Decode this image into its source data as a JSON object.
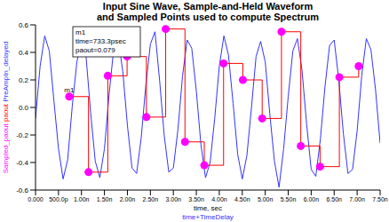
{
  "chart_data": {
    "type": "line",
    "title": [
      "Input Sine Wave, Sample-and-Held Waveform",
      "and Sampled Points used to compute Spectrum"
    ],
    "xlabel": "time, sec",
    "x_expression": "time+TimeDelay",
    "xlim": [
      0,
      7.5
    ],
    "xticks": [
      {
        "value": 0,
        "label": "0.000"
      },
      {
        "value": 0.5,
        "label": "500.0p"
      },
      {
        "value": 1,
        "label": "1.00n"
      },
      {
        "value": 1.5,
        "label": "1.50n"
      },
      {
        "value": 2,
        "label": "2.00n"
      },
      {
        "value": 2.5,
        "label": "2.50n"
      },
      {
        "value": 3,
        "label": "3.00n"
      },
      {
        "value": 3.5,
        "label": "3.50n"
      },
      {
        "value": 4,
        "label": "4.00n"
      },
      {
        "value": 4.5,
        "label": "4.50n"
      },
      {
        "value": 5,
        "label": "5.00n"
      },
      {
        "value": 5.5,
        "label": "5.50n"
      },
      {
        "value": 6,
        "label": "6.00n"
      },
      {
        "value": 6.5,
        "label": "6.50n"
      },
      {
        "value": 7,
        "label": "7.00n"
      },
      {
        "value": 7.5,
        "label": "7.50n"
      }
    ],
    "ylim": [
      -0.6,
      0.6
    ],
    "yticks": [
      -0.6,
      -0.4,
      -0.2,
      {
        "value": 0,
        "label": "0.0"
      },
      0.2,
      0.4,
      0.6
    ],
    "grid": false,
    "series": [
      {
        "name": "PreAmpIn_delayed",
        "type": "line",
        "color": "#3333ff",
        "x": [
          0,
          0.1,
          0.2,
          0.3,
          0.4,
          0.5,
          0.6,
          0.7,
          0.8,
          0.9,
          1.0,
          1.1,
          1.2,
          1.3,
          1.4,
          1.5,
          1.6,
          1.7,
          1.8,
          1.9,
          2.0,
          2.1,
          2.2,
          2.3,
          2.4,
          2.5,
          2.6,
          2.7,
          2.8,
          2.9,
          3.0,
          3.1,
          3.2,
          3.3,
          3.4,
          3.5,
          3.6,
          3.7,
          3.8,
          3.9,
          4.0,
          4.1,
          4.2,
          4.3,
          4.4,
          4.5,
          4.6,
          4.7,
          4.8,
          4.9,
          5.0,
          5.1,
          5.2,
          5.3,
          5.4,
          5.5,
          5.6,
          5.7,
          5.8,
          5.9,
          6.0,
          6.1,
          6.2,
          6.3,
          6.4,
          6.5,
          6.6,
          6.7,
          6.8,
          6.9,
          7.0,
          7.1,
          7.2,
          7.3,
          7.4,
          7.5
        ],
        "values": [
          -0.08,
          0.3,
          0.52,
          0.41,
          0.05,
          -0.3,
          -0.52,
          -0.38,
          0.01,
          0.33,
          0.49,
          0.37,
          -0.04,
          -0.39,
          -0.51,
          -0.3,
          0.09,
          0.42,
          0.5,
          0.26,
          -0.13,
          -0.44,
          -0.48,
          -0.22,
          0.16,
          0.46,
          0.55,
          0.2,
          -0.2,
          -0.47,
          -0.44,
          -0.16,
          0.23,
          0.49,
          0.43,
          0.12,
          -0.27,
          -0.51,
          -0.4,
          -0.08,
          0.3,
          0.52,
          0.38,
          0.03,
          -0.34,
          -0.52,
          -0.35,
          0.0,
          0.37,
          0.48,
          0.33,
          -0.05,
          -0.39,
          -0.58,
          -0.3,
          0.08,
          0.41,
          0.5,
          0.27,
          -0.12,
          -0.45,
          -0.5,
          -0.23,
          0.15,
          0.45,
          0.49,
          0.2,
          -0.19,
          -0.48,
          -0.45,
          -0.17,
          0.23,
          0.5,
          0.42,
          0.13,
          -0.26
        ]
      },
      {
        "name": "paout",
        "type": "line",
        "line_style": "step",
        "color": "#ff0000",
        "x": [
          0.733,
          1.153,
          1.573,
          1.993,
          2.413,
          2.833,
          3.253,
          3.673,
          4.093,
          4.513,
          4.933,
          5.353,
          5.773,
          6.193,
          6.613,
          7.033
        ],
        "values": [
          0.079,
          -0.47,
          0.23,
          0.37,
          -0.07,
          0.57,
          -0.25,
          -0.42,
          0.32,
          0.2,
          -0.08,
          0.55,
          -0.28,
          -0.43,
          0.22,
          0.3
        ]
      },
      {
        "name": "Sampled_paout",
        "type": "scatter",
        "marker": "circle",
        "color": "#ff00ff",
        "x": [
          0.733,
          1.153,
          1.573,
          1.993,
          2.413,
          2.833,
          3.253,
          3.673,
          4.093,
          4.513,
          4.933,
          5.353,
          5.773,
          6.193,
          6.613,
          7.033
        ],
        "values": [
          0.079,
          -0.47,
          0.23,
          0.37,
          -0.07,
          0.57,
          -0.25,
          -0.42,
          0.32,
          0.2,
          -0.08,
          0.55,
          -0.28,
          -0.43,
          0.22,
          0.3
        ]
      }
    ],
    "annotations": [
      {
        "name": "m1",
        "x": 0.733,
        "y": 0.079,
        "text": [
          "time=733.3psec",
          "paout=0.079"
        ]
      }
    ]
  }
}
